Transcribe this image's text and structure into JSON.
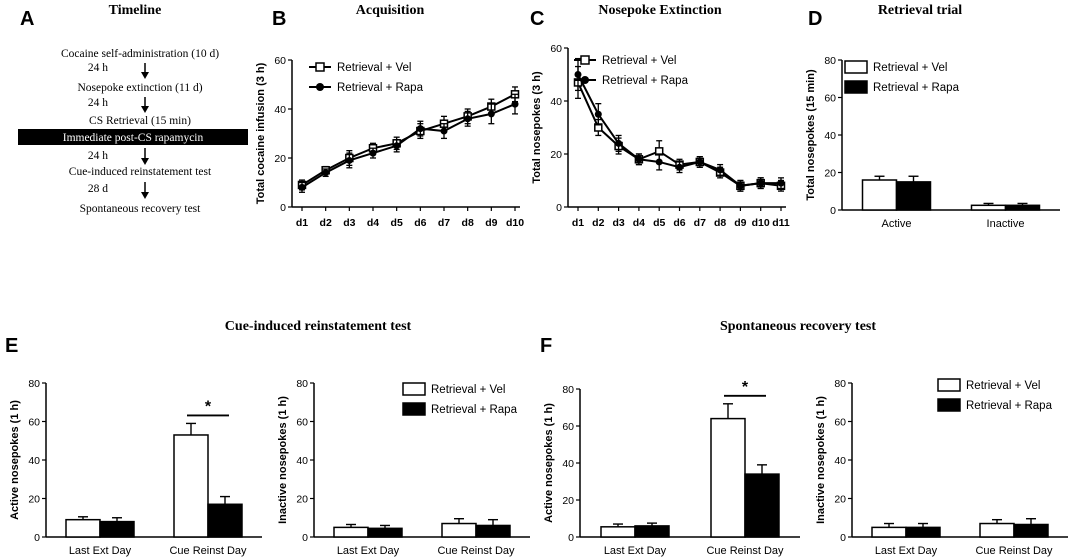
{
  "panel_letters": {
    "a": "A",
    "b": "B",
    "c": "C",
    "d": "D",
    "e": "E",
    "f": "F"
  },
  "timeline": {
    "title": "Timeline",
    "steps": [
      "Cocaine self-administration (10 d)",
      "Nosepoke extinction (11 d)",
      "CS Retrieval (15 min)",
      "Immediate post-CS rapamycin",
      "Cue-induced reinstatement test",
      "Spontaneous recovery test"
    ],
    "gaps": [
      "24 h",
      "24 h",
      "24 h",
      "28 d"
    ]
  },
  "section_titles": {
    "reinstatement": "Cue-induced reinstatement test",
    "spontaneous": "Spontaneous recovery test"
  },
  "legend": {
    "vel": "Retrieval + Vel",
    "rapa": "Retrieval + Rapa"
  },
  "colors": {
    "vel_fill": "#ffffff",
    "rapa_fill": "#000000",
    "highlight_bar": "#000000"
  },
  "chart_data": [
    {
      "id": "B",
      "type": "line",
      "title": "Acquisition",
      "xlabel": "",
      "ylabel": "Total cocaine infusion (3 h)",
      "categories": [
        "d1",
        "d2",
        "d3",
        "d4",
        "d5",
        "d6",
        "d7",
        "d8",
        "d9",
        "d10"
      ],
      "ylim": [
        0,
        60
      ],
      "yticks": [
        0,
        20,
        40,
        60
      ],
      "series": [
        {
          "name": "Retrieval + Vel",
          "values": [
            9,
            15,
            20,
            24,
            26,
            31,
            34,
            37,
            41,
            46
          ],
          "errors": [
            2,
            1.5,
            3,
            2,
            2.5,
            3,
            3,
            3,
            3,
            3
          ]
        },
        {
          "name": "Retrieval + Rapa",
          "values": [
            8,
            14,
            19,
            22,
            25,
            32,
            31,
            36,
            38,
            42
          ],
          "errors": [
            2,
            1.5,
            3,
            2,
            2.5,
            3,
            3,
            3,
            4,
            4
          ]
        }
      ]
    },
    {
      "id": "C",
      "type": "line",
      "title": "Nosepoke Extinction",
      "xlabel": "",
      "ylabel": "Total nosepokes (3 h)",
      "categories": [
        "d1",
        "d2",
        "d3",
        "d4",
        "d5",
        "d6",
        "d7",
        "d8",
        "d9",
        "d10",
        "d11"
      ],
      "ylim": [
        0,
        60
      ],
      "yticks": [
        0,
        20,
        40,
        60
      ],
      "series": [
        {
          "name": "Retrieval + Vel",
          "values": [
            47,
            30,
            23,
            18,
            21,
            16,
            17,
            13,
            8,
            9,
            8
          ],
          "errors": [
            6,
            3,
            3,
            2,
            4,
            2,
            2,
            2,
            2,
            2,
            2
          ]
        },
        {
          "name": "Retrieval + Rapa",
          "values": [
            50,
            35,
            24,
            18,
            17,
            15,
            17,
            14,
            8,
            9,
            9
          ],
          "errors": [
            6,
            4,
            3,
            2,
            3,
            2,
            2,
            2,
            2,
            2,
            2
          ]
        }
      ]
    },
    {
      "id": "D",
      "type": "bar",
      "title": "Retrieval trial",
      "xlabel": "",
      "ylabel": "Total nosepokes (15 min)",
      "categories": [
        "Active",
        "Inactive"
      ],
      "ylim": [
        0,
        80
      ],
      "yticks": [
        0,
        20,
        40,
        60,
        80
      ],
      "series": [
        {
          "name": "Retrieval + Vel",
          "values": [
            16,
            2.5
          ],
          "errors": [
            2,
            1
          ]
        },
        {
          "name": "Retrieval + Rapa",
          "values": [
            15,
            2.5
          ],
          "errors": [
            3,
            1
          ]
        }
      ]
    },
    {
      "id": "E-active",
      "type": "bar",
      "title": "",
      "xlabel": "",
      "ylabel": "Active nosepokes (1 h)",
      "categories": [
        "Last Ext Day",
        "Cue Reinst Day"
      ],
      "ylim": [
        0,
        80
      ],
      "yticks": [
        0,
        20,
        40,
        60,
        80
      ],
      "significance": "*",
      "series": [
        {
          "name": "Retrieval + Vel",
          "values": [
            9,
            53
          ],
          "errors": [
            1.5,
            6
          ]
        },
        {
          "name": "Retrieval + Rapa",
          "values": [
            8,
            17
          ],
          "errors": [
            2,
            4
          ]
        }
      ]
    },
    {
      "id": "E-inactive",
      "type": "bar",
      "title": "",
      "xlabel": "",
      "ylabel": "Inactive nosepokes (1 h)",
      "categories": [
        "Last Ext Day",
        "Cue Reinst Day"
      ],
      "ylim": [
        0,
        80
      ],
      "yticks": [
        0,
        20,
        40,
        60,
        80
      ],
      "series": [
        {
          "name": "Retrieval + Vel",
          "values": [
            5,
            7
          ],
          "errors": [
            1.5,
            2.5
          ]
        },
        {
          "name": "Retrieval + Rapa",
          "values": [
            4.5,
            6
          ],
          "errors": [
            1.5,
            3
          ]
        }
      ]
    },
    {
      "id": "F-active",
      "type": "bar",
      "title": "",
      "xlabel": "",
      "ylabel": "Active nosepokes (1 h)",
      "categories": [
        "Last Ext Day",
        "Cue Reinst Day"
      ],
      "ylim": [
        0,
        80
      ],
      "yticks": [
        0,
        20,
        40,
        60,
        80
      ],
      "significance": "*",
      "series": [
        {
          "name": "Retrieval + Vel",
          "values": [
            5.5,
            64
          ],
          "errors": [
            1.5,
            8
          ]
        },
        {
          "name": "Retrieval + Rapa",
          "values": [
            6,
            34
          ],
          "errors": [
            1.5,
            5
          ]
        }
      ]
    },
    {
      "id": "F-inactive",
      "type": "bar",
      "title": "",
      "xlabel": "",
      "ylabel": "Inactive nosepokes (1 h)",
      "categories": [
        "Last Ext Day",
        "Cue Reinst Day"
      ],
      "ylim": [
        0,
        80
      ],
      "yticks": [
        0,
        20,
        40,
        60,
        80
      ],
      "series": [
        {
          "name": "Retrieval + Vel",
          "values": [
            5,
            7
          ],
          "errors": [
            2,
            2
          ]
        },
        {
          "name": "Retrieval + Rapa",
          "values": [
            5,
            6.5
          ],
          "errors": [
            2,
            3
          ]
        }
      ]
    }
  ]
}
